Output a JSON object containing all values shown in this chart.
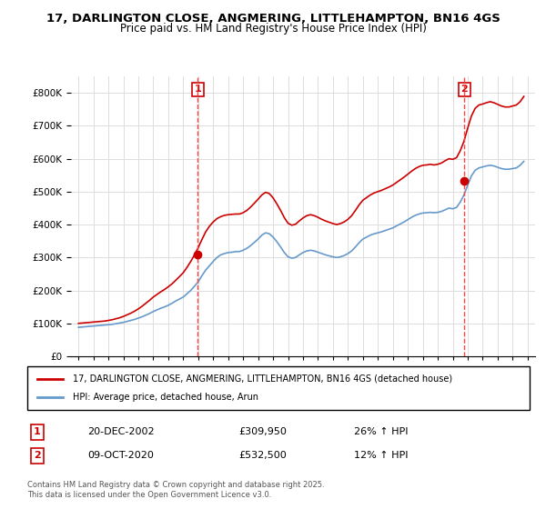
{
  "title_line1": "17, DARLINGTON CLOSE, ANGMERING, LITTLEHAMPTON, BN16 4GS",
  "title_line2": "Price paid vs. HM Land Registry's House Price Index (HPI)",
  "ylabel": "",
  "background_color": "#ffffff",
  "plot_bg_color": "#ffffff",
  "grid_color": "#dddddd",
  "red_color": "#cc0000",
  "blue_color": "#6699cc",
  "dashed_red": "#ff4444",
  "legend_label_red": "17, DARLINGTON CLOSE, ANGMERING, LITTLEHAMPTON, BN16 4GS (detached house)",
  "legend_label_blue": "HPI: Average price, detached house, Arun",
  "marker1_date": "20-DEC-2002",
  "marker1_price": "£309,950",
  "marker1_pct": "26% ↑ HPI",
  "marker2_date": "09-OCT-2020",
  "marker2_price": "£532,500",
  "marker2_pct": "12% ↑ HPI",
  "footer": "Contains HM Land Registry data © Crown copyright and database right 2025.\nThis data is licensed under the Open Government Licence v3.0.",
  "ylim_max": 850000,
  "ylim_min": 0,
  "sale1_year": 2002.97,
  "sale1_price": 309950,
  "sale2_year": 2020.77,
  "sale2_price": 532500,
  "hpi_years": [
    1995,
    1995.25,
    1995.5,
    1995.75,
    1996,
    1996.25,
    1996.5,
    1996.75,
    1997,
    1997.25,
    1997.5,
    1997.75,
    1998,
    1998.25,
    1998.5,
    1998.75,
    1999,
    1999.25,
    1999.5,
    1999.75,
    2000,
    2000.25,
    2000.5,
    2000.75,
    2001,
    2001.25,
    2001.5,
    2001.75,
    2002,
    2002.25,
    2002.5,
    2002.75,
    2003,
    2003.25,
    2003.5,
    2003.75,
    2004,
    2004.25,
    2004.5,
    2004.75,
    2005,
    2005.25,
    2005.5,
    2005.75,
    2006,
    2006.25,
    2006.5,
    2006.75,
    2007,
    2007.25,
    2007.5,
    2007.75,
    2008,
    2008.25,
    2008.5,
    2008.75,
    2009,
    2009.25,
    2009.5,
    2009.75,
    2010,
    2010.25,
    2010.5,
    2010.75,
    2011,
    2011.25,
    2011.5,
    2011.75,
    2012,
    2012.25,
    2012.5,
    2012.75,
    2013,
    2013.25,
    2013.5,
    2013.75,
    2014,
    2014.25,
    2014.5,
    2014.75,
    2015,
    2015.25,
    2015.5,
    2015.75,
    2016,
    2016.25,
    2016.5,
    2016.75,
    2017,
    2017.25,
    2017.5,
    2017.75,
    2018,
    2018.25,
    2018.5,
    2018.75,
    2019,
    2019.25,
    2019.5,
    2019.75,
    2020,
    2020.25,
    2020.5,
    2020.75,
    2021,
    2021.25,
    2021.5,
    2021.75,
    2022,
    2022.25,
    2022.5,
    2022.75,
    2023,
    2023.25,
    2023.5,
    2023.75,
    2024,
    2024.25,
    2024.5,
    2024.75
  ],
  "hpi_values": [
    88000,
    89000,
    90000,
    91000,
    92000,
    93000,
    94000,
    95000,
    96000,
    97000,
    99000,
    101000,
    103000,
    106000,
    109000,
    112000,
    116000,
    120000,
    125000,
    130000,
    136000,
    141000,
    146000,
    150000,
    155000,
    161000,
    168000,
    174000,
    180000,
    190000,
    200000,
    213000,
    226000,
    245000,
    262000,
    275000,
    288000,
    300000,
    308000,
    312000,
    315000,
    316000,
    318000,
    318000,
    322000,
    328000,
    336000,
    346000,
    356000,
    368000,
    375000,
    372000,
    362000,
    348000,
    332000,
    315000,
    302000,
    298000,
    300000,
    308000,
    315000,
    320000,
    322000,
    320000,
    316000,
    312000,
    308000,
    305000,
    302000,
    300000,
    302000,
    306000,
    312000,
    320000,
    332000,
    345000,
    356000,
    362000,
    368000,
    372000,
    375000,
    378000,
    382000,
    386000,
    390000,
    396000,
    402000,
    408000,
    415000,
    422000,
    428000,
    432000,
    435000,
    436000,
    437000,
    436000,
    437000,
    440000,
    445000,
    450000,
    448000,
    452000,
    468000,
    490000,
    520000,
    548000,
    565000,
    572000,
    575000,
    578000,
    580000,
    578000,
    574000,
    570000,
    568000,
    568000,
    570000,
    572000,
    580000,
    592000
  ],
  "red_years": [
    1995,
    1995.25,
    1995.5,
    1995.75,
    1996,
    1996.25,
    1996.5,
    1996.75,
    1997,
    1997.25,
    1997.5,
    1997.75,
    1998,
    1998.25,
    1998.5,
    1998.75,
    1999,
    1999.25,
    1999.5,
    1999.75,
    2000,
    2000.25,
    2000.5,
    2000.75,
    2001,
    2001.25,
    2001.5,
    2001.75,
    2002,
    2002.25,
    2002.5,
    2002.75,
    2003,
    2003.25,
    2003.5,
    2003.75,
    2004,
    2004.25,
    2004.5,
    2004.75,
    2005,
    2005.25,
    2005.5,
    2005.75,
    2006,
    2006.25,
    2006.5,
    2006.75,
    2007,
    2007.25,
    2007.5,
    2007.75,
    2008,
    2008.25,
    2008.5,
    2008.75,
    2009,
    2009.25,
    2009.5,
    2009.75,
    2010,
    2010.25,
    2010.5,
    2010.75,
    2011,
    2011.25,
    2011.5,
    2011.75,
    2012,
    2012.25,
    2012.5,
    2012.75,
    2013,
    2013.25,
    2013.5,
    2013.75,
    2014,
    2014.25,
    2014.5,
    2014.75,
    2015,
    2015.25,
    2015.5,
    2015.75,
    2016,
    2016.25,
    2016.5,
    2016.75,
    2017,
    2017.25,
    2017.5,
    2017.75,
    2018,
    2018.25,
    2018.5,
    2018.75,
    2019,
    2019.25,
    2019.5,
    2019.75,
    2020,
    2020.25,
    2020.5,
    2020.75,
    2021,
    2021.25,
    2021.5,
    2021.75,
    2022,
    2022.25,
    2022.5,
    2022.75,
    2023,
    2023.25,
    2023.5,
    2023.75,
    2024,
    2024.25,
    2024.5,
    2024.75
  ],
  "red_values": [
    100000,
    101000,
    102000,
    103000,
    104000,
    105000,
    106000,
    107000,
    109000,
    111000,
    114000,
    117000,
    121000,
    126000,
    131000,
    137000,
    144000,
    152000,
    161000,
    170000,
    180000,
    188000,
    196000,
    203000,
    211000,
    220000,
    231000,
    242000,
    254000,
    270000,
    288000,
    308000,
    330000,
    355000,
    378000,
    395000,
    408000,
    418000,
    424000,
    428000,
    430000,
    431000,
    432000,
    432000,
    436000,
    443000,
    453000,
    465000,
    477000,
    490000,
    498000,
    494000,
    481000,
    463000,
    443000,
    421000,
    404000,
    398000,
    401000,
    411000,
    420000,
    427000,
    430000,
    427000,
    422000,
    416000,
    411000,
    407000,
    403000,
    400000,
    403000,
    408000,
    416000,
    427000,
    443000,
    460000,
    474000,
    482000,
    490000,
    496000,
    500000,
    504000,
    509000,
    514000,
    520000,
    528000,
    536000,
    544000,
    553000,
    562000,
    570000,
    576000,
    580000,
    581000,
    583000,
    581000,
    583000,
    587000,
    594000,
    600000,
    598000,
    603000,
    624000,
    653000,
    693000,
    730000,
    753000,
    763000,
    766000,
    770000,
    773000,
    770000,
    765000,
    760000,
    757000,
    757000,
    760000,
    763000,
    773000,
    789000
  ]
}
